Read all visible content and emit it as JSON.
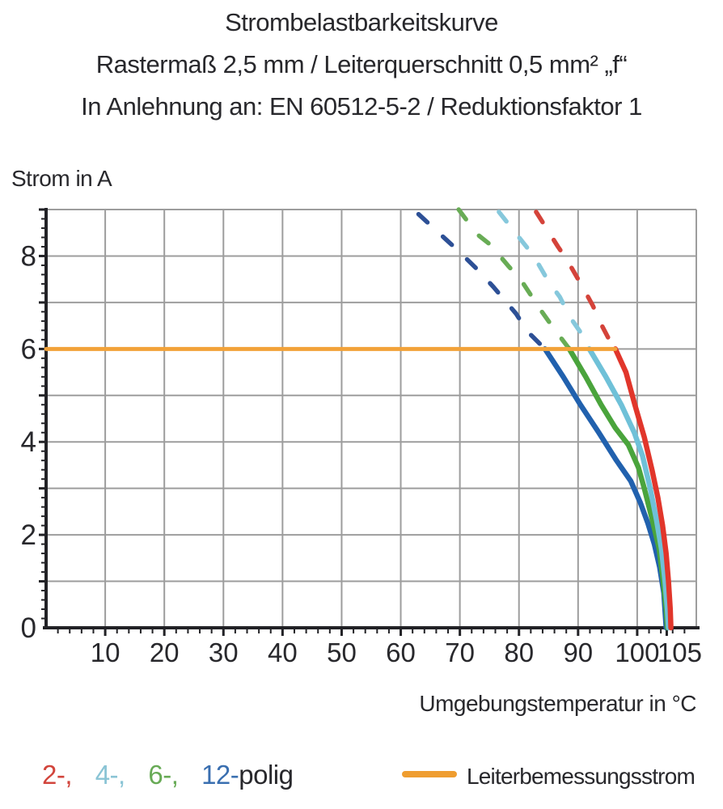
{
  "header": {
    "title_lines": [
      "Strombelastbarkeitskurve",
      "Rastermaß 2,5 mm / Leiterquerschnitt 0,5 mm² „f“",
      "In Anlehnung an: EN 60512-5-2 / Reduktionsfaktor 1"
    ]
  },
  "chart_data": {
    "type": "line",
    "title": "Strombelastbarkeitskurve",
    "ylabel": "Strom in A",
    "xlabel": "Umgebungstemperatur in °C",
    "xlim": [
      0,
      110
    ],
    "ylim": [
      0,
      9
    ],
    "grid": true,
    "grid_color": "#9d9d9d",
    "axis_color": "#222226",
    "text_color": "#28282c",
    "x_grid_step": 10,
    "y_grid_step": 1,
    "x_minor_step": 2,
    "y_minor_step": 0.2,
    "x_ticks": [
      {
        "v": 10,
        "label": "10"
      },
      {
        "v": 20,
        "label": "20"
      },
      {
        "v": 30,
        "label": "30"
      },
      {
        "v": 40,
        "label": "40"
      },
      {
        "v": 50,
        "label": "50"
      },
      {
        "v": 60,
        "label": "60"
      },
      {
        "v": 70,
        "label": "70"
      },
      {
        "v": 80,
        "label": "80"
      },
      {
        "v": 90,
        "label": "90"
      },
      {
        "v": 100,
        "label": "100"
      },
      {
        "v": 105,
        "label": "105",
        "dx": 16
      }
    ],
    "y_ticks": [
      {
        "v": 0,
        "label": "0"
      },
      {
        "v": 2,
        "label": "2"
      },
      {
        "v": 4,
        "label": "4"
      },
      {
        "v": 6,
        "label": "6"
      },
      {
        "v": 8,
        "label": "8"
      }
    ],
    "rated_line": {
      "y": 6,
      "x_start": 0,
      "x_end": 96.3,
      "color": "#f2a239",
      "label": "Leiterbemessungsstrom"
    },
    "series": [
      {
        "name": "2-polig",
        "color": "#e1362b",
        "dash_color": "#d4433a",
        "dashed": [
          [
            82.9,
            8.95
          ],
          [
            86.6,
            8.2
          ],
          [
            88.2,
            7.9
          ],
          [
            91.0,
            7.28
          ],
          [
            92.5,
            6.93
          ],
          [
            93.7,
            6.58
          ],
          [
            95.1,
            6.24
          ],
          [
            96.3,
            6.0
          ]
        ],
        "solid": [
          [
            96.3,
            6.0
          ],
          [
            98.1,
            5.5
          ],
          [
            99.6,
            4.8
          ],
          [
            101.2,
            4.1
          ],
          [
            102.5,
            3.4
          ],
          [
            103.5,
            2.8
          ],
          [
            104.3,
            2.2
          ],
          [
            104.9,
            1.6
          ],
          [
            105.3,
            1.0
          ],
          [
            105.6,
            0.4
          ],
          [
            105.7,
            0.0
          ]
        ]
      },
      {
        "name": "4-polig",
        "color": "#6fc1d8",
        "dash_color": "#86c8dc",
        "dashed": [
          [
            76.6,
            8.95
          ],
          [
            80.7,
            8.29
          ],
          [
            82.5,
            8.0
          ],
          [
            85.0,
            7.45
          ],
          [
            86.9,
            7.12
          ],
          [
            88.6,
            6.69
          ],
          [
            90.3,
            6.38
          ],
          [
            91.9,
            6.0
          ]
        ],
        "solid": [
          [
            91.9,
            6.0
          ],
          [
            94.7,
            5.4
          ],
          [
            97.3,
            4.8
          ],
          [
            99.5,
            4.2
          ],
          [
            100.9,
            3.7
          ],
          [
            102.2,
            3.0
          ],
          [
            103.3,
            2.3
          ],
          [
            104.1,
            1.7
          ],
          [
            104.7,
            1.0
          ],
          [
            105.1,
            0.4
          ],
          [
            105.3,
            0.0
          ]
        ]
      },
      {
        "name": "6-polig",
        "color": "#4aa43c",
        "dash_color": "#68ac55",
        "dashed": [
          [
            69.8,
            9.0
          ],
          [
            72.9,
            8.47
          ],
          [
            75.2,
            8.24
          ],
          [
            78.1,
            7.8
          ],
          [
            80.4,
            7.47
          ],
          [
            83.6,
            6.85
          ],
          [
            85.5,
            6.51
          ],
          [
            88.5,
            6.0
          ]
        ],
        "solid": [
          [
            88.5,
            6.0
          ],
          [
            91.3,
            5.4
          ],
          [
            93.9,
            4.8
          ],
          [
            96.3,
            4.3
          ],
          [
            98.5,
            3.94
          ],
          [
            100.2,
            3.45
          ],
          [
            101.2,
            3.0
          ],
          [
            102.6,
            2.3
          ],
          [
            103.7,
            1.7
          ],
          [
            104.4,
            1.0
          ],
          [
            104.9,
            0.4
          ],
          [
            105.1,
            0.0
          ]
        ]
      },
      {
        "name": "12-polig",
        "color": "#2161ae",
        "dash_color": "#2d5096",
        "dashed": [
          [
            63.0,
            8.9
          ],
          [
            67.7,
            8.35
          ],
          [
            70.0,
            8.08
          ],
          [
            73.2,
            7.68
          ],
          [
            75.7,
            7.33
          ],
          [
            79.5,
            6.76
          ],
          [
            81.4,
            6.38
          ],
          [
            84.4,
            6.0
          ]
        ],
        "solid": [
          [
            84.4,
            6.0
          ],
          [
            87.5,
            5.4
          ],
          [
            90.4,
            4.8
          ],
          [
            93.5,
            4.2
          ],
          [
            96.5,
            3.6
          ],
          [
            98.9,
            3.16
          ],
          [
            100.5,
            2.7
          ],
          [
            101.8,
            2.25
          ],
          [
            102.9,
            1.8
          ],
          [
            103.8,
            1.3
          ],
          [
            104.5,
            0.75
          ],
          [
            104.9,
            0.0
          ]
        ]
      }
    ]
  },
  "legend": {
    "items": [
      {
        "label": "2-,",
        "color": "#d2453c"
      },
      {
        "label": "4-,",
        "color": "#8ac4d5"
      },
      {
        "label": "6-,",
        "color": "#67aa55"
      },
      {
        "label": "12-",
        "color": "#3a6fb0"
      }
    ],
    "suffix": "polig",
    "rated": {
      "label": "Leiterbemessungsstrom",
      "color": "#ef9d2f"
    }
  }
}
